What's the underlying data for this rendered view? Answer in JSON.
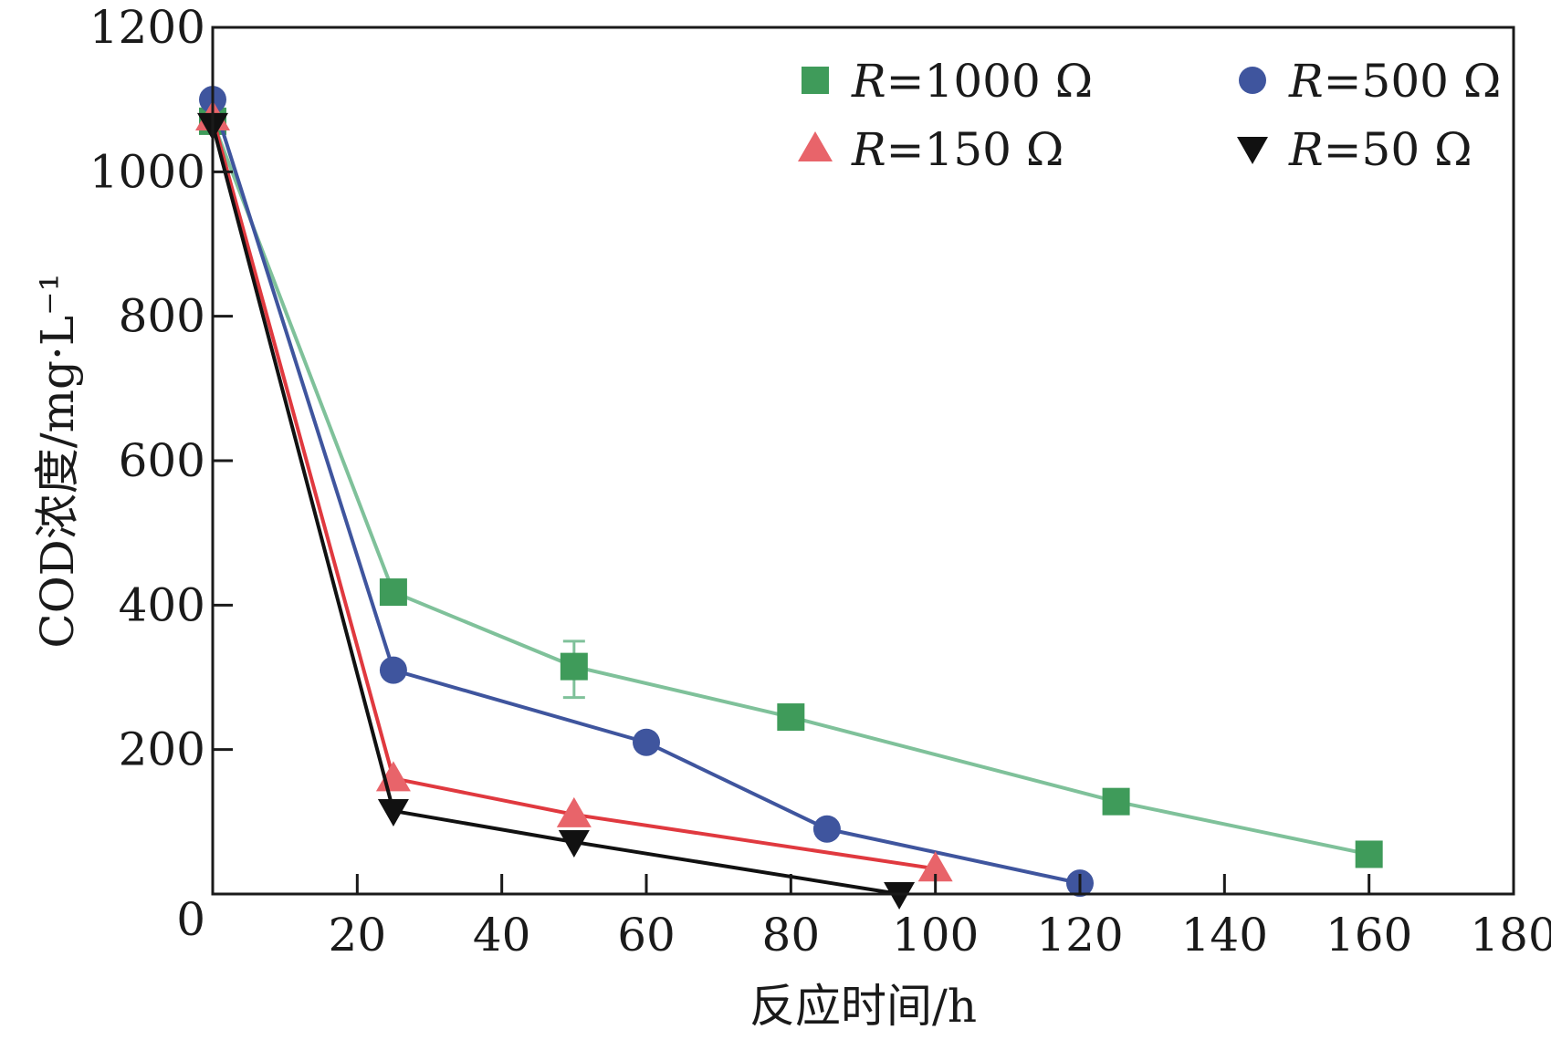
{
  "chart_data": {
    "type": "line",
    "xlabel": "反应时间/h",
    "ylabel": "COD浓度/mg·L⁻¹",
    "xlim": [
      0,
      180
    ],
    "ylim": [
      0,
      1200
    ],
    "xticks": [
      20,
      40,
      60,
      80,
      100,
      120,
      140,
      160,
      180
    ],
    "yticks": [
      0,
      200,
      400,
      600,
      800,
      1000,
      1200
    ],
    "grid": false,
    "legend_position": "top-right",
    "series": [
      {
        "name": "R=1000 Ω",
        "label_italic": "R",
        "label_rest": "=1000 Ω",
        "marker": "square",
        "marker_color": "#3f9b5a",
        "line_color": "#7fc19a",
        "x": [
          0,
          25,
          50,
          80,
          125,
          160
        ],
        "y": [
          1070,
          418,
          315,
          245,
          128,
          55
        ],
        "error_bars": [
          {
            "x": 50,
            "low": 272,
            "high": 350
          }
        ]
      },
      {
        "name": "R=500 Ω",
        "label_italic": "R",
        "label_rest": "=500 Ω",
        "marker": "circle",
        "marker_color": "#3f559e",
        "line_color": "#3f559e",
        "x": [
          0,
          25,
          60,
          85,
          120
        ],
        "y": [
          1100,
          310,
          210,
          90,
          15
        ]
      },
      {
        "name": "R=150 Ω",
        "label_italic": "R",
        "label_rest": "=150 Ω",
        "marker": "triangle-up",
        "marker_color": "#e8646a",
        "line_color": "#e0393f",
        "x": [
          0,
          25,
          50,
          100
        ],
        "y": [
          1075,
          160,
          110,
          35
        ]
      },
      {
        "name": "R=50 Ω",
        "label_italic": "R",
        "label_rest": "=50 Ω",
        "marker": "triangle-down",
        "marker_color": "#111111",
        "line_color": "#111111",
        "x": [
          0,
          25,
          50,
          95
        ],
        "y": [
          1065,
          115,
          72,
          0
        ]
      }
    ]
  }
}
